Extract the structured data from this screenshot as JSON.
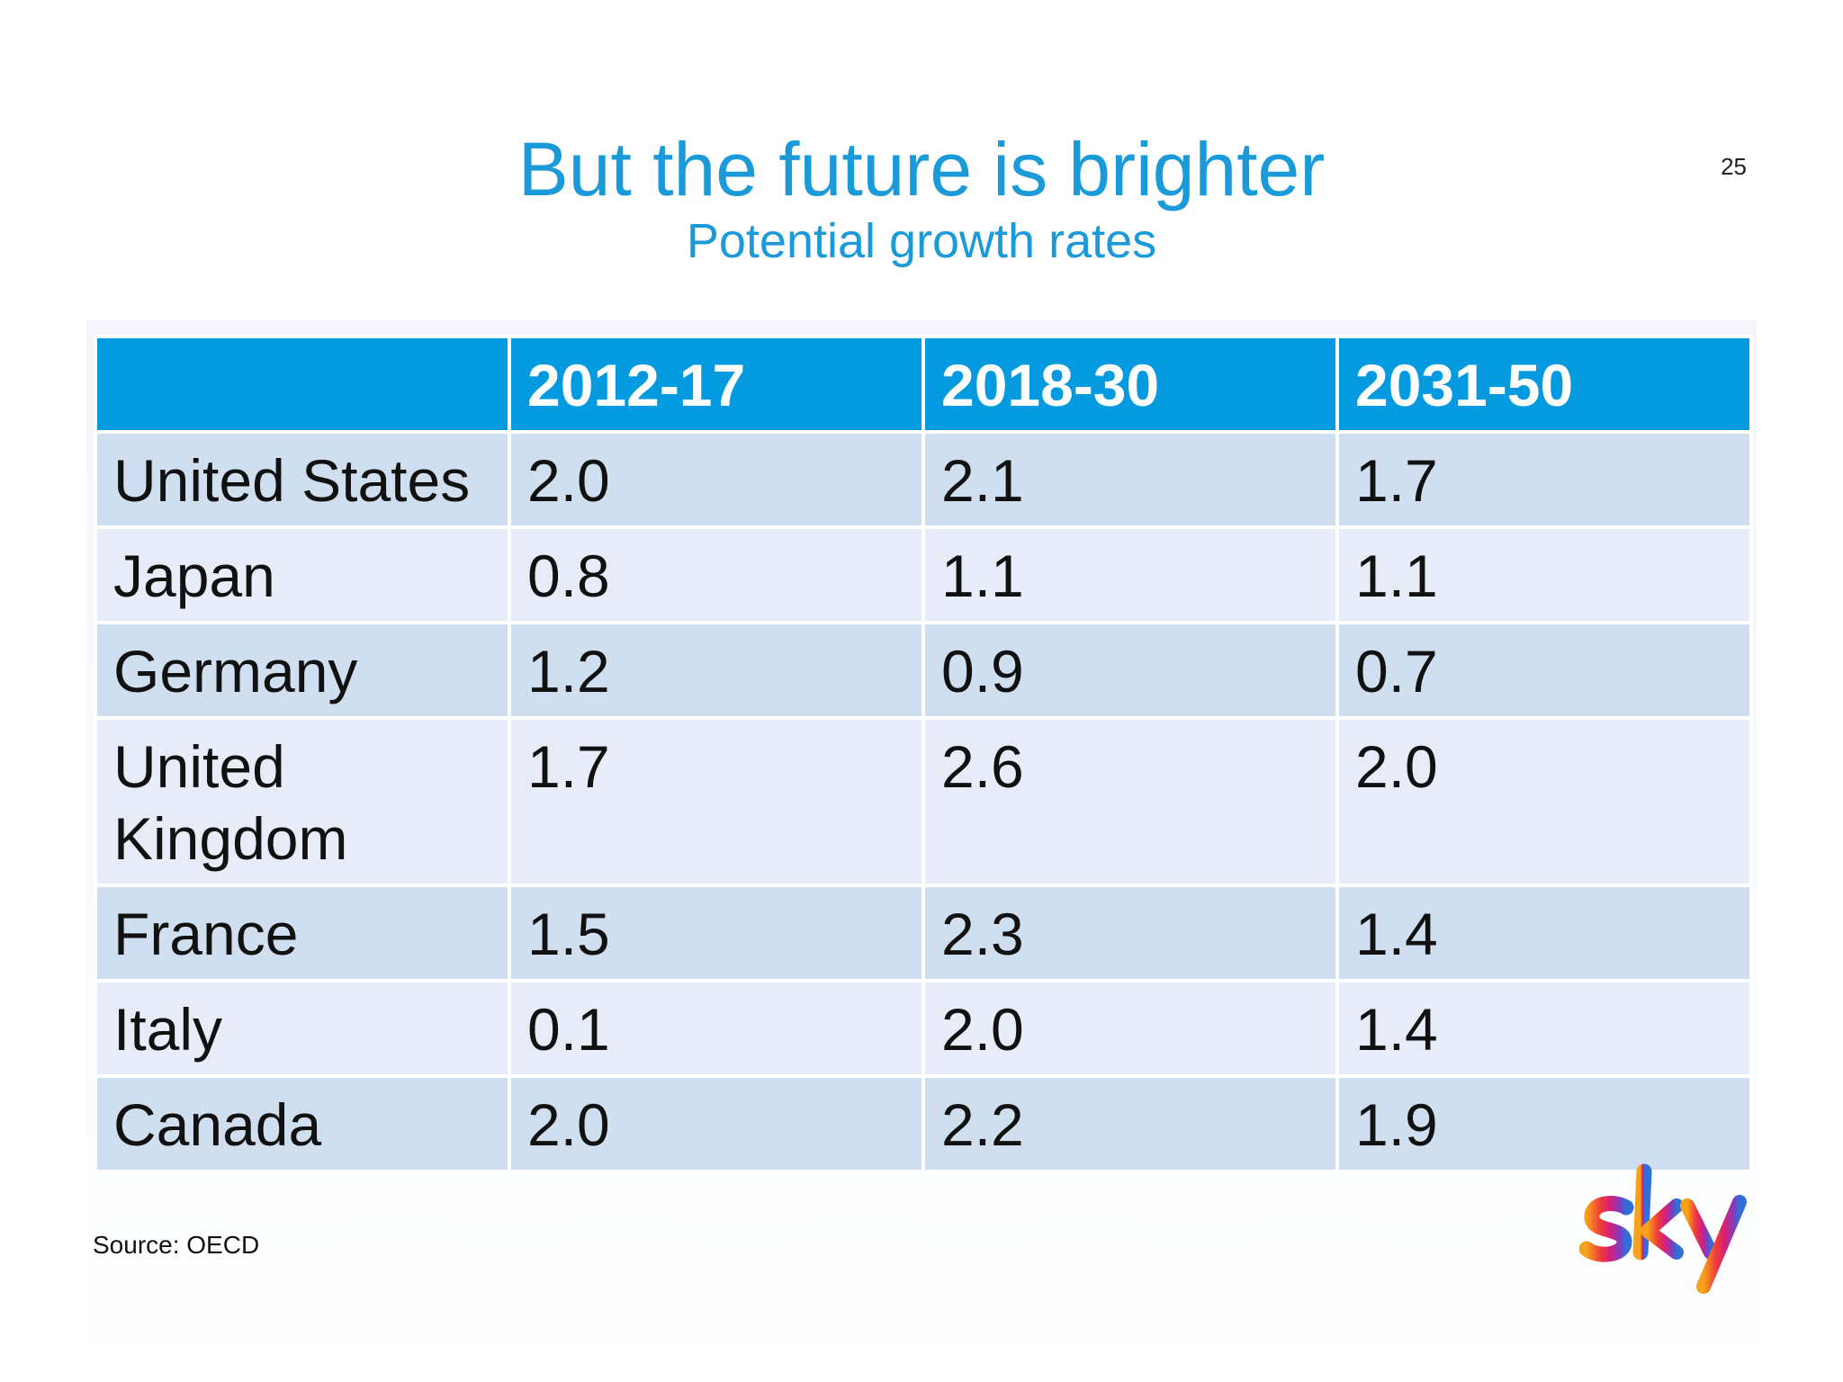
{
  "slide": {
    "title": "But the future is brighter",
    "subtitle": "Potential growth rates",
    "page_number": "25",
    "source": "Source: OECD",
    "logo_text": "sky"
  },
  "table": {
    "headers": [
      "",
      "2012-17",
      "2018-30",
      "2031-50"
    ],
    "rows": [
      {
        "country": "United States",
        "values": [
          "2.0",
          "2.1",
          "1.7"
        ],
        "bold": [
          true,
          false,
          false
        ]
      },
      {
        "country": "Japan",
        "values": [
          "0.8",
          "1.1",
          "1.1"
        ],
        "bold": [
          false,
          false,
          false
        ]
      },
      {
        "country": "Germany",
        "values": [
          "1.2",
          "0.9",
          "0.7"
        ],
        "bold": [
          false,
          false,
          false
        ]
      },
      {
        "country": "United Kingdom",
        "values": [
          "1.7",
          "2.6",
          "2.0"
        ],
        "bold": [
          false,
          true,
          true
        ]
      },
      {
        "country": "France",
        "values": [
          "1.5",
          "2.3",
          "1.4"
        ],
        "bold": [
          false,
          false,
          false
        ]
      },
      {
        "country": "Italy",
        "values": [
          "0.1",
          "2.0",
          "1.4"
        ],
        "bold": [
          false,
          false,
          false
        ]
      },
      {
        "country": "Canada",
        "values": [
          "2.0",
          "2.2",
          "1.9"
        ],
        "bold": [
          true,
          false,
          false
        ]
      }
    ]
  },
  "colors": {
    "accent": "#1a9ad9",
    "header_bg": "#049ae0",
    "row_dark": "#cfdff0",
    "row_light": "#e7ecf8"
  }
}
